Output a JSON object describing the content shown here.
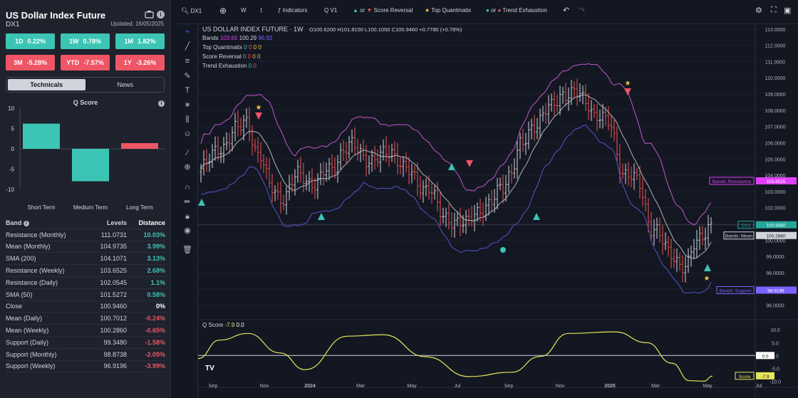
{
  "instrument": {
    "title": "US Dollar Index Future",
    "symbol": "DX1",
    "updated": "Updated: 16/05/2025"
  },
  "perf": [
    {
      "label": "1D",
      "value": "0.22%",
      "tone": "g"
    },
    {
      "label": "1W",
      "value": "0.78%",
      "tone": "g"
    },
    {
      "label": "1M",
      "value": "1.82%",
      "tone": "g"
    },
    {
      "label": "3M",
      "value": "-5.28%",
      "tone": "r"
    },
    {
      "label": "YTD",
      "value": "-7.57%",
      "tone": "r"
    },
    {
      "label": "1Y",
      "value": "-3.26%",
      "tone": "r"
    }
  ],
  "tabs": [
    {
      "label": "Technicals",
      "active": true
    },
    {
      "label": "News",
      "active": false
    }
  ],
  "qscore_chart": {
    "title": "Q Score",
    "type": "bar",
    "categories": [
      "Short Term",
      "Medium Term",
      "Long Term"
    ],
    "values": [
      6.2,
      -8.0,
      1.4
    ],
    "ylim": [
      -10,
      10
    ],
    "ticks": [
      "10",
      "5",
      "0",
      "-5",
      "-10"
    ],
    "colors": [
      "#3cc4b4",
      "#3cc4b4",
      "#ee5565"
    ]
  },
  "band_table": {
    "headers": [
      "Band",
      "Levels",
      "Distance"
    ],
    "rows": [
      [
        "Resistance (Monthly)",
        "111.0731",
        "10.03%"
      ],
      [
        "Mean (Monthly)",
        "104.9735",
        "3.99%"
      ],
      [
        "SMA (200)",
        "104.1071",
        "3.13%"
      ],
      [
        "Resistance (Weekly)",
        "103.6525",
        "2.68%"
      ],
      [
        "Resistance (Daily)",
        "102.0545",
        "1.1%"
      ],
      [
        "SMA (50)",
        "101.5272",
        "0.58%"
      ],
      [
        "Close",
        "100.9460",
        "0%"
      ],
      [
        "Mean (Daily)",
        "100.7012",
        "-0.24%"
      ],
      [
        "Mean (Weekly)",
        "100.2860",
        "-0.65%"
      ],
      [
        "Support (Daily)",
        "99.3480",
        "-1.58%"
      ],
      [
        "Support (Monthly)",
        "98.8738",
        "-2.05%"
      ],
      [
        "Support (Weekly)",
        "96.9196",
        "-3.99%"
      ]
    ]
  },
  "toolbar": {
    "symbol": "DX1",
    "interval": "W",
    "indicators": "Indicators",
    "version": "V1",
    "or": "or",
    "score_reversal": "Score Reversal",
    "top_quantmatix": "Top Quantmatix",
    "trend_exhaustion": "Trend Exhaustion"
  },
  "chart_legend": {
    "title": "US DOLLAR INDEX FUTURE · 1W",
    "ohlc": "O100.6200 H101.8150 L100.1050 C100.9460 +0.7780 (+0.78%)",
    "bands_label": "Bands",
    "bands_vals": [
      "103.65",
      "100.29",
      "96.92"
    ],
    "rows": [
      {
        "label": "Top Quantmatix",
        "vals": [
          "0",
          "0",
          "0",
          "0"
        ]
      },
      {
        "label": "Score Reversal",
        "vals": [
          "0",
          "0",
          "0",
          "0"
        ]
      },
      {
        "label": "Trend Exhaustion",
        "vals": [
          "0",
          "0"
        ]
      }
    ]
  },
  "chart_data": {
    "type": "line",
    "x": [
      "Sep",
      "Nov",
      "2024",
      "Mar",
      "May",
      "Jul",
      "Sep",
      "Nov",
      "2025",
      "Mar",
      "May",
      "Jul"
    ],
    "price_ticks": [
      "113.0000",
      "112.0000",
      "111.0000",
      "110.0000",
      "109.0000",
      "108.0000",
      "107.0000",
      "106.0000",
      "105.0000",
      "104.0000",
      "103.0000",
      "102.0000",
      "101.0000",
      "100.0000",
      "99.0000",
      "98.0000",
      "97.0000",
      "96.0000"
    ],
    "labels": [
      {
        "text": "Bands: Resistance",
        "value": "103.6525",
        "color": "#e040fb"
      },
      {
        "text": "DX1",
        "value": "100.9460",
        "color": "#26a69a"
      },
      {
        "text": "Bands: Mean",
        "value": "100.2860",
        "color": "#d1d4dc"
      },
      {
        "text": "Bands: Support",
        "value": "96.9196",
        "color": "#7b61ff"
      }
    ],
    "osc": {
      "title": "Q Score",
      "v1": "-7.9",
      "v2": "0.0",
      "ticks": [
        "10.0",
        "5.0",
        "0.0",
        "-5.0",
        "-10.0"
      ],
      "zero_label": "0.0",
      "score_label": "Score",
      "score_value": "-7.9"
    }
  }
}
